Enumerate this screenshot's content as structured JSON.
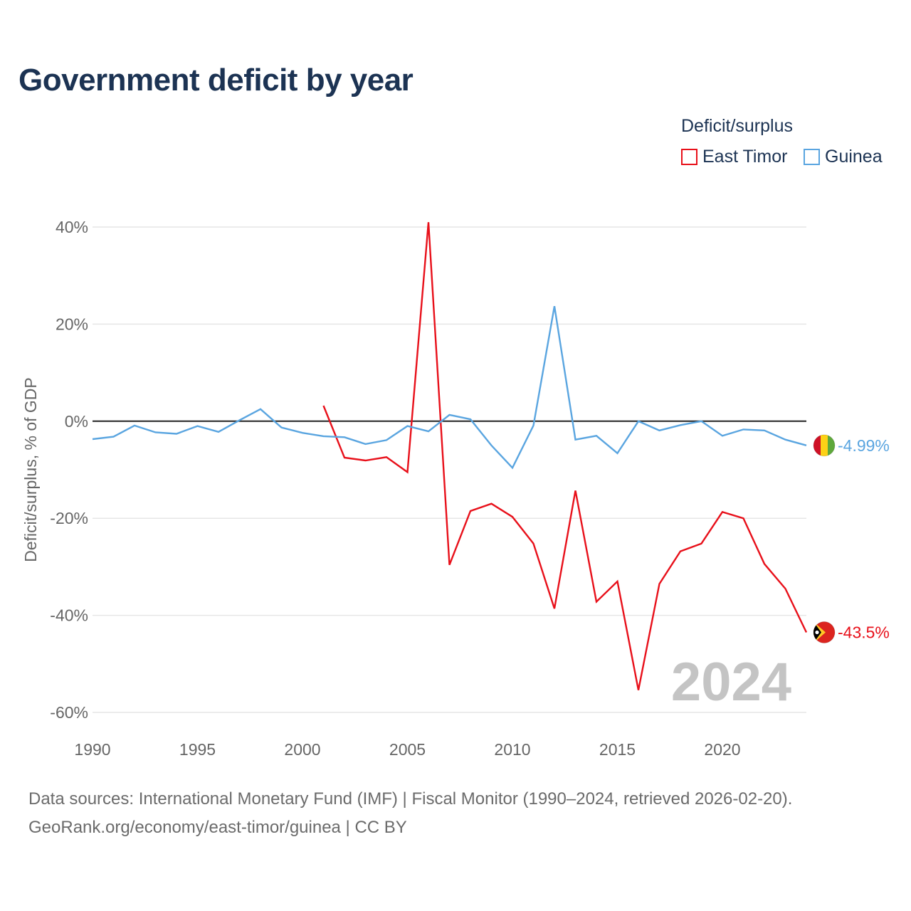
{
  "colors": {
    "east_timor": "#e8101a",
    "guinea": "#5aa5e0",
    "title": "#1c3353",
    "grid": "#e6e6e6",
    "zero_line": "#222222",
    "watermark": "#c4c4c4"
  },
  "flags": {
    "guinea": "guinea-flag-icon",
    "east_timor": "east-timor-flag-icon"
  },
  "chart_data": {
    "type": "line",
    "title": "Government deficit by year",
    "xlabel": "",
    "ylabel": "Deficit/surplus, % of GDP",
    "xlim": [
      1990,
      2024
    ],
    "ylim": [
      -60,
      40
    ],
    "x_ticks": [
      1990,
      1995,
      2000,
      2005,
      2010,
      2015,
      2020
    ],
    "y_ticks": [
      40,
      20,
      0,
      -20,
      -40,
      -60
    ],
    "y_tick_labels": [
      "40%",
      "20%",
      "0%",
      "-20%",
      "-40%",
      "-60%"
    ],
    "grid": true,
    "legend_title": "Deficit/surplus",
    "legend_position": "top-right",
    "year_watermark": "2024",
    "series": [
      {
        "name": "East Timor",
        "key": "east_timor",
        "end_label": "-43.5%",
        "x": [
          2001,
          2002,
          2003,
          2004,
          2005,
          2006,
          2007,
          2008,
          2009,
          2010,
          2011,
          2012,
          2013,
          2014,
          2015,
          2016,
          2017,
          2018,
          2019,
          2020,
          2021,
          2022,
          2023,
          2024
        ],
        "values": [
          3.2,
          -7.5,
          -8.1,
          -7.4,
          -10.5,
          41.0,
          -29.6,
          -18.5,
          -17.0,
          -19.7,
          -25.2,
          -38.6,
          -14.3,
          -37.2,
          -33.0,
          -55.4,
          -33.5,
          -26.8,
          -25.2,
          -18.7,
          -20.0,
          -29.4,
          -34.5,
          -43.5
        ]
      },
      {
        "name": "Guinea",
        "key": "guinea",
        "end_label": "-4.99%",
        "x": [
          1990,
          1991,
          1992,
          1993,
          1994,
          1995,
          1996,
          1997,
          1998,
          1999,
          2000,
          2001,
          2002,
          2003,
          2004,
          2005,
          2006,
          2007,
          2008,
          2009,
          2010,
          2011,
          2012,
          2013,
          2014,
          2015,
          2016,
          2017,
          2018,
          2019,
          2020,
          2021,
          2022,
          2023,
          2024
        ],
        "values": [
          -3.7,
          -3.2,
          -0.9,
          -2.3,
          -2.6,
          -1.0,
          -2.2,
          0.2,
          2.5,
          -1.3,
          -2.4,
          -3.1,
          -3.3,
          -4.7,
          -3.9,
          -1.0,
          -2.1,
          1.3,
          0.4,
          -5.0,
          -9.6,
          -0.9,
          23.7,
          -3.8,
          -3.0,
          -6.6,
          0.0,
          -1.9,
          -0.8,
          0.0,
          -3.0,
          -1.7,
          -1.9,
          -3.8,
          -4.99
        ]
      }
    ]
  },
  "footer": {
    "line1": "Data sources: International Monetary Fund (IMF) | Fiscal Monitor (1990–2024, retrieved 2026-02-20).",
    "line2": "GeoRank.org/economy/east-timor/guinea | CC BY"
  }
}
